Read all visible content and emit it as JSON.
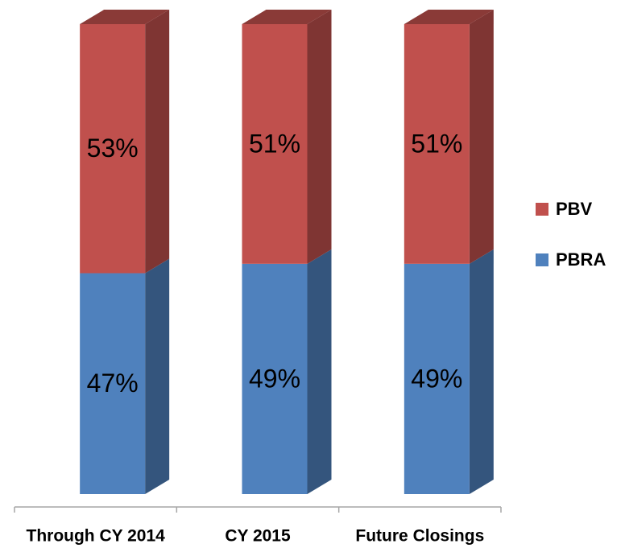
{
  "chart_data": {
    "type": "bar",
    "stacked": true,
    "categories": [
      "Through CY 2014",
      "CY 2015",
      "Future Closings"
    ],
    "series": [
      {
        "name": "PBRA",
        "color": "#4f81bd",
        "values": [
          47,
          49,
          49
        ],
        "value_labels": [
          "47%",
          "49%",
          "49%"
        ]
      },
      {
        "name": "PBV",
        "color": "#c0504d",
        "values": [
          53,
          51,
          51
        ],
        "value_labels": [
          "53%",
          "51%",
          "51%"
        ]
      }
    ]
  }
}
